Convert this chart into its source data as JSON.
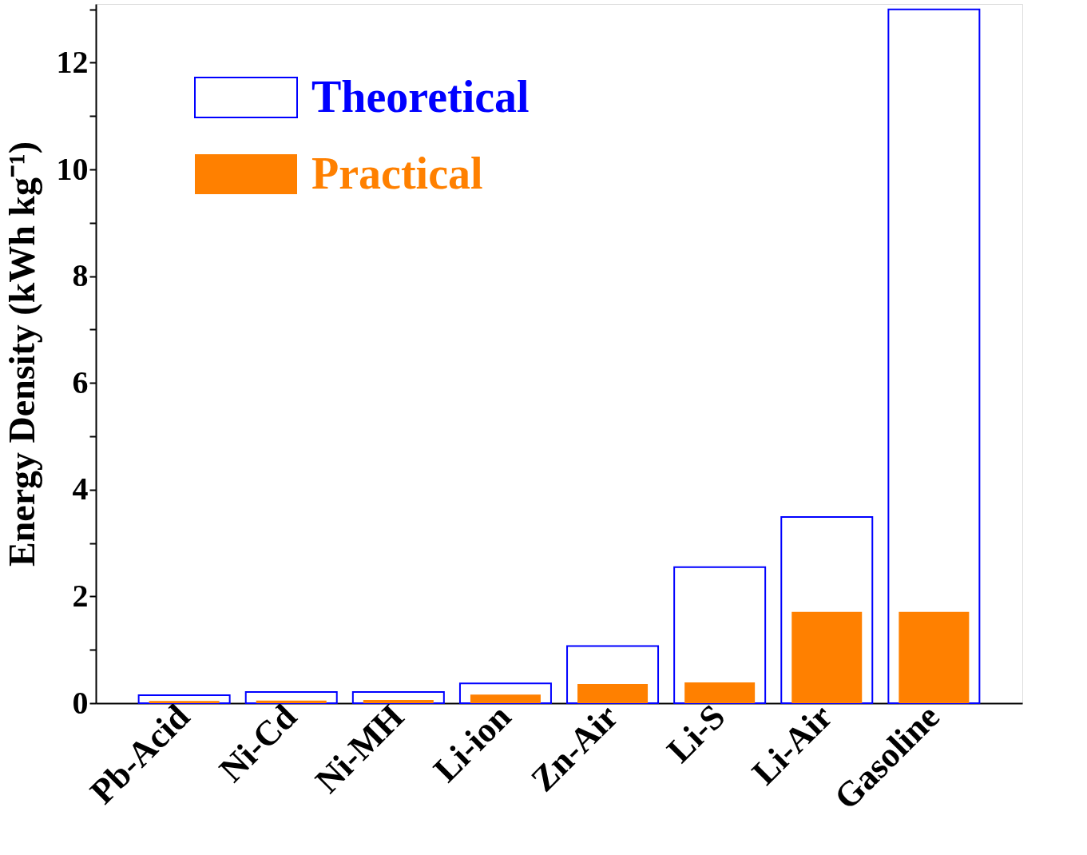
{
  "chart_data": {
    "type": "bar",
    "ylabel": "Energy Density (kWh kg⁻¹)",
    "categories": [
      "Pb-Acid",
      "Ni-Cd",
      "Ni-MH",
      "Li-ion",
      "Zn-Air",
      "Li-S",
      "Li-Air",
      "Gasoline"
    ],
    "series": [
      {
        "name": "Theoretical",
        "color": "#0000ff",
        "values": [
          0.15,
          0.21,
          0.21,
          0.37,
          1.07,
          2.55,
          3.49,
          13.0
        ]
      },
      {
        "name": "Practical",
        "color": "#ff8000",
        "values": [
          0.04,
          0.05,
          0.06,
          0.16,
          0.36,
          0.39,
          1.71,
          1.71
        ]
      }
    ],
    "ylim": [
      0,
      13.1
    ],
    "yticks": [
      0,
      {
        "value": 1,
        "label": null
      },
      2,
      {
        "value": 3,
        "label": null
      },
      4,
      {
        "value": 5,
        "label": null
      },
      6,
      {
        "value": 7,
        "label": null
      },
      8,
      {
        "value": 9,
        "label": null
      },
      10,
      {
        "value": 11,
        "label": null
      },
      12,
      {
        "value": 13,
        "label": null
      }
    ],
    "legend": "top left",
    "grid": false
  }
}
